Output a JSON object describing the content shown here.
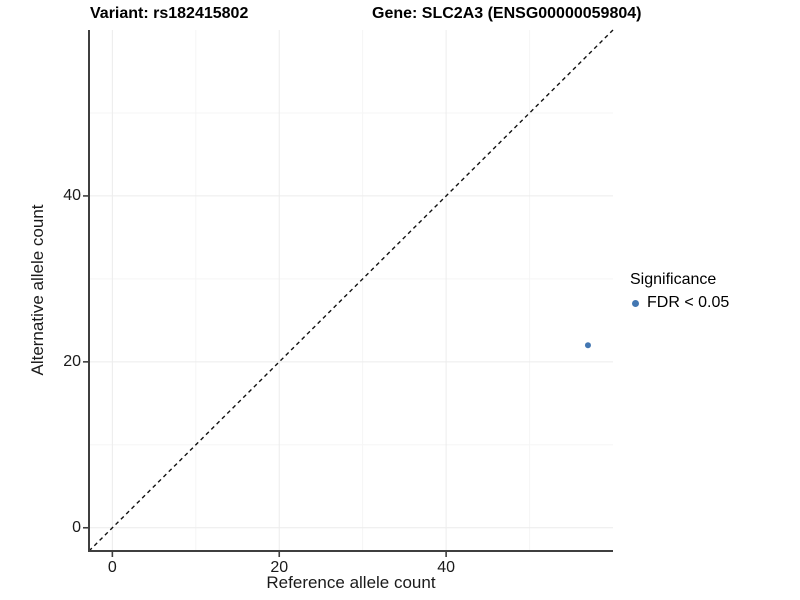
{
  "header": {
    "variant_title": "Variant: rs182415802",
    "gene_title": "Gene: SLC2A3 (ENSG00000059804)"
  },
  "chart_data": {
    "type": "scatter",
    "title_left": "Variant: rs182415802",
    "title_right": "Gene: SLC2A3 (ENSG00000059804)",
    "xlabel": "Reference allele count",
    "ylabel": "Alternative allele count",
    "xlim": [
      -2.8,
      60
    ],
    "ylim": [
      -2.8,
      60
    ],
    "xticks": [
      0,
      20,
      40
    ],
    "yticks": [
      0,
      20,
      40
    ],
    "minor_xticks": [
      10,
      30,
      50
    ],
    "minor_yticks": [
      10,
      30,
      50
    ],
    "grid": "major and minor gridlines, light gray on white",
    "legend_position": "right",
    "legend_title": "Significance",
    "series": [
      {
        "name": "FDR < 0.05",
        "color": "#4377B2",
        "marker": "circle",
        "points": [
          {
            "x": 57,
            "y": 22
          }
        ]
      }
    ],
    "reference_line": {
      "kind": "identity y = x",
      "style": "dashed",
      "from": [
        -2.8,
        -2.8
      ],
      "to": [
        60,
        60
      ]
    }
  },
  "colors": {
    "axis_line": "#3F3F3F",
    "grid_major": "#ECECEC",
    "grid_minor": "#F5F5F5",
    "reference_line": "#111111",
    "title_text": "#000000",
    "axis_text": "#1A1A1A"
  }
}
